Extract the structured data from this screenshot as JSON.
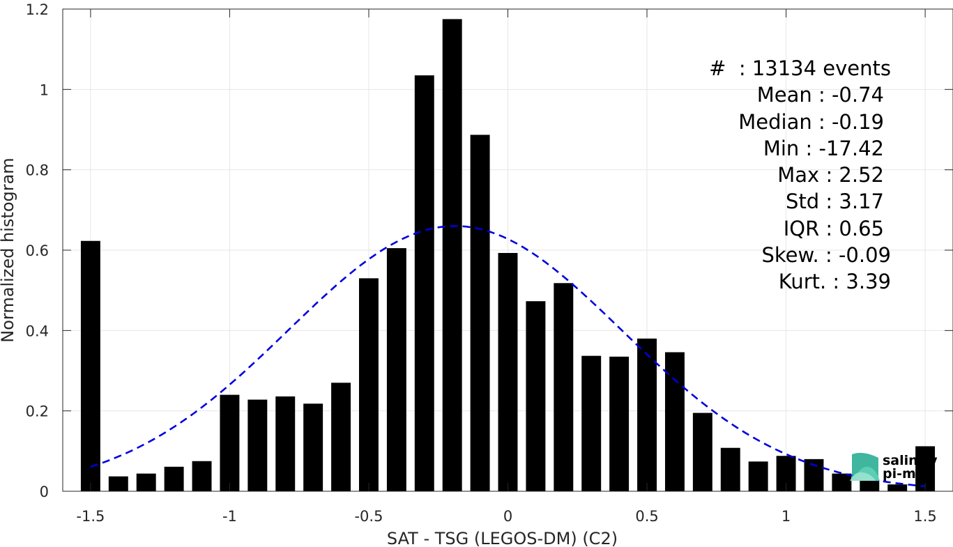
{
  "chart_data": {
    "type": "bar",
    "xlabel": "SAT - TSG (LEGOS-DM) (C2)",
    "ylabel": "Normalized histogram",
    "xlim": [
      -1.6,
      1.6
    ],
    "ylim": [
      0,
      1.2
    ],
    "xticks": [
      -1.5,
      -1,
      -0.5,
      0,
      0.5,
      1,
      1.5
    ],
    "xtick_labels": [
      "-1.5",
      "-1",
      "-0.5",
      "0",
      "0.5",
      "1",
      "1.5"
    ],
    "yticks": [
      0,
      0.2,
      0.4,
      0.6,
      0.8,
      1,
      1.2
    ],
    "ytick_labels": [
      "0",
      "0.2",
      "0.4",
      "0.6",
      "0.8",
      "1",
      "1.2"
    ],
    "grid": true,
    "bar_width": 0.07,
    "bar_color": "#000000",
    "x": [
      -1.5,
      -1.4,
      -1.3,
      -1.2,
      -1.1,
      -1.0,
      -0.9,
      -0.8,
      -0.7,
      -0.6,
      -0.5,
      -0.4,
      -0.3,
      -0.2,
      -0.1,
      0.0,
      0.1,
      0.2,
      0.3,
      0.4,
      0.5,
      0.6,
      0.7,
      0.8,
      0.9,
      1.0,
      1.1,
      1.2,
      1.3,
      1.4,
      1.5
    ],
    "values": [
      0.623,
      0.037,
      0.044,
      0.061,
      0.075,
      0.24,
      0.228,
      0.236,
      0.218,
      0.27,
      0.53,
      0.605,
      1.035,
      1.175,
      0.887,
      0.593,
      0.473,
      0.518,
      0.337,
      0.335,
      0.38,
      0.346,
      0.195,
      0.108,
      0.074,
      0.088,
      0.08,
      0.044,
      0.028,
      0.017,
      0.112
    ],
    "fit_curve": {
      "type": "gaussian",
      "color": "#0000dd",
      "style": "dashed",
      "mean": -0.19,
      "sigma": 0.6,
      "peak": 0.66
    },
    "annotations": [
      "#  : 13134 events",
      "Mean : -0.74",
      "Median : -0.19",
      "Min : -17.42",
      "Max : 2.52",
      "Std : 3.17",
      "IQR : 0.65",
      "Skew. : -0.09",
      "Kurt. : 3.39"
    ]
  },
  "logo": {
    "line1": "salinity",
    "line2": "pi-mep",
    "color": "#1fa98e"
  }
}
